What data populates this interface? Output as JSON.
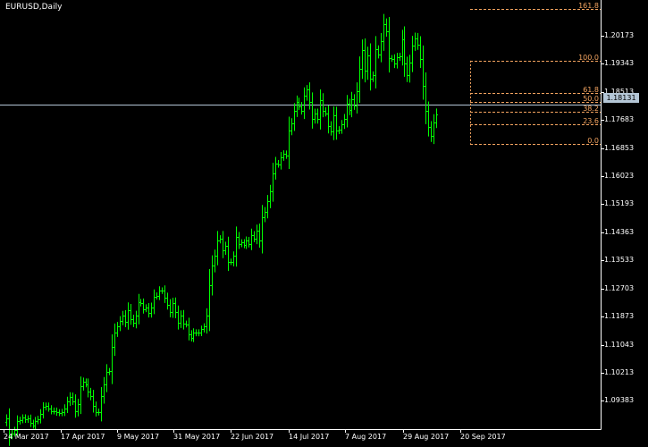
{
  "window": {
    "title": "EURUSD,Daily"
  },
  "colors": {
    "background": "#000000",
    "axis": "#FFFFFF",
    "candle": "#00FF00",
    "fibonacci": "#F4A460",
    "bid_line": "#B4C6D6"
  },
  "current_price": "1.18131",
  "fibonacci": {
    "levels": [
      {
        "label": "161.8",
        "price": 1.2095
      },
      {
        "label": "100.0",
        "price": 1.1943
      },
      {
        "label": "61.8",
        "price": 1.1849
      },
      {
        "label": "50.0",
        "price": 1.182
      },
      {
        "label": "38.2",
        "price": 1.1792
      },
      {
        "label": "23.6",
        "price": 1.1756
      },
      {
        "label": "0.0",
        "price": 1.1698
      }
    ]
  },
  "chart_data": {
    "type": "candlestick",
    "title": "EURUSD,Daily",
    "y_ticks": [
      "1.20173",
      "1.19343",
      "1.18513",
      "1.17683",
      "1.16853",
      "1.16023",
      "1.15193",
      "1.14363",
      "1.13533",
      "1.12703",
      "1.11873",
      "1.11043",
      "1.10213",
      "1.09383"
    ],
    "x_ticks": [
      "24 Mar 2017",
      "17 Apr 2017",
      "9 May 2017",
      "31 May 2017",
      "22 Jun 2017",
      "14 Jul 2017",
      "7 Aug 2017",
      "29 Aug 2017",
      "20 Sep 2017"
    ],
    "ylim": [
      1.0855,
      1.2117
    ],
    "series": [
      {
        "close": [
          1.0887,
          1.0835,
          1.0843,
          1.0852,
          1.0878,
          1.0882,
          1.0889,
          1.0883,
          1.0886,
          1.0873,
          1.0866,
          1.0879,
          1.0885,
          1.0901,
          1.092,
          1.0924,
          1.0916,
          1.0908,
          1.0909,
          1.0904,
          1.0903,
          1.0905,
          1.0917,
          1.0936,
          1.0951,
          1.0938,
          1.0908,
          1.0929,
          1.0981,
          1.0995,
          1.0988,
          1.0965,
          1.0952,
          1.0923,
          1.0906,
          1.0905,
          1.0952,
          1.0987,
          1.1024,
          1.1026,
          1.1097,
          1.1141,
          1.1158,
          1.1175,
          1.1191,
          1.1171,
          1.1207,
          1.1181,
          1.1168,
          1.1189,
          1.123,
          1.1227,
          1.121,
          1.1214,
          1.1198,
          1.1215,
          1.1247,
          1.1249,
          1.1264,
          1.1264,
          1.1243,
          1.1223,
          1.1201,
          1.1226,
          1.12,
          1.1169,
          1.119,
          1.1166,
          1.1165,
          1.1136,
          1.1125,
          1.114,
          1.1139,
          1.114,
          1.115,
          1.1158,
          1.1191,
          1.1281,
          1.1337,
          1.1366,
          1.1413,
          1.1418,
          1.1382,
          1.1396,
          1.1349,
          1.1349,
          1.1366,
          1.1422,
          1.1402,
          1.1406,
          1.1399,
          1.1412,
          1.1402,
          1.1429,
          1.1418,
          1.1442,
          1.1411,
          1.148,
          1.1497,
          1.1527,
          1.1557,
          1.1611,
          1.164,
          1.1637,
          1.1658,
          1.1668,
          1.1663,
          1.1738,
          1.1758,
          1.1795,
          1.1822,
          1.1809,
          1.1796,
          1.1839,
          1.1857,
          1.1821,
          1.1771,
          1.1788,
          1.1771,
          1.1827,
          1.1796,
          1.1788,
          1.1751,
          1.1735,
          1.1781,
          1.1736,
          1.174,
          1.1755,
          1.1772,
          1.1816,
          1.1797,
          1.183,
          1.1812,
          1.1854,
          1.192,
          1.1975,
          1.1913,
          1.1958,
          1.1891,
          1.1901,
          1.1976,
          1.1962,
          1.2001,
          1.2052,
          1.203,
          1.195,
          1.1949,
          1.1934,
          1.1952,
          1.1957,
          1.2006,
          1.1934,
          1.1901,
          1.1938,
          1.1988,
          1.201,
          1.199,
          1.1947,
          1.1869,
          1.1795,
          1.1747,
          1.1721,
          1.1761,
          1.1785
        ]
      }
    ]
  }
}
